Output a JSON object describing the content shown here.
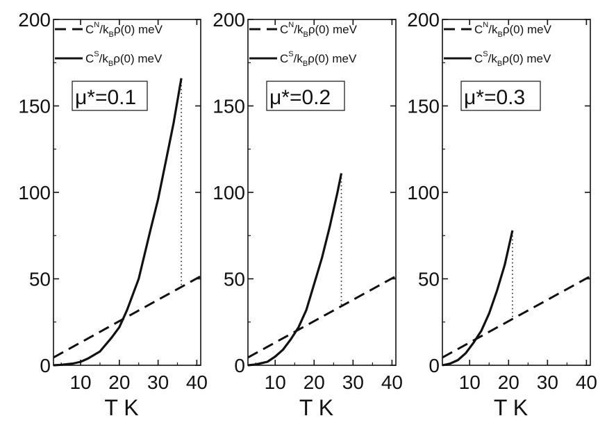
{
  "chart_data": [
    {
      "type": "line",
      "xlabel": "T K",
      "ylabel": "",
      "xlim": [
        3,
        41
      ],
      "ylim": [
        0,
        200
      ],
      "xticks": [
        10,
        20,
        30,
        40
      ],
      "yticks": [
        0,
        50,
        100,
        150,
        200
      ],
      "legend": [
        {
          "style": "dashed",
          "label_main": "C",
          "label_sup": "N",
          "label_mid": "/k",
          "label_sub": "B",
          "label_end": "ρ(0) meV"
        },
        {
          "style": "solid",
          "label_main": "C",
          "label_sup": "S",
          "label_mid": "/k",
          "label_sub": "B",
          "label_end": "ρ(0) meV"
        }
      ],
      "annotation": "μ*=0.1",
      "tc": 36,
      "series": [
        {
          "label": "",
          "style": "dashed",
          "x": [
            3,
            41
          ],
          "y": [
            4.5,
            51.5
          ]
        },
        {
          "label": "",
          "style": "solid",
          "x": [
            3,
            5,
            8,
            10,
            12,
            15,
            18,
            20,
            22,
            25,
            28,
            30,
            32,
            34,
            36
          ],
          "y": [
            0,
            0.3,
            1,
            2,
            4,
            8,
            16,
            22,
            32,
            50,
            78,
            96,
            118,
            140,
            166
          ]
        },
        {
          "label": "",
          "style": "dotted",
          "x": [
            36,
            36
          ],
          "y": [
            46.5,
            166
          ]
        }
      ]
    },
    {
      "type": "line",
      "xlabel": "T K",
      "ylabel": "",
      "xlim": [
        3,
        41
      ],
      "ylim": [
        0,
        200
      ],
      "xticks": [
        10,
        20,
        30,
        40
      ],
      "yticks": [
        0,
        50,
        100,
        150,
        200
      ],
      "legend": [
        {
          "style": "dashed",
          "label_main": "C",
          "label_sup": "N",
          "label_mid": "/k",
          "label_sub": "B",
          "label_end": "ρ(0) meV"
        },
        {
          "style": "solid",
          "label_main": "C",
          "label_sup": "S",
          "label_mid": "/k",
          "label_sub": "B",
          "label_end": "ρ(0) meV"
        }
      ],
      "annotation": "μ*=0.2",
      "tc": 27,
      "series": [
        {
          "label": "",
          "style": "dashed",
          "x": [
            3,
            41
          ],
          "y": [
            4.5,
            51.5
          ]
        },
        {
          "label": "",
          "style": "solid",
          "x": [
            3,
            5,
            8,
            10,
            12,
            14,
            16,
            18,
            20,
            22,
            24,
            26,
            27
          ],
          "y": [
            0,
            0.5,
            2,
            5,
            9,
            15,
            22,
            32,
            47,
            62,
            80,
            100,
            111
          ]
        },
        {
          "label": "",
          "style": "dotted",
          "x": [
            27,
            27
          ],
          "y": [
            35,
            111
          ]
        }
      ]
    },
    {
      "type": "line",
      "xlabel": "T K",
      "ylabel": "",
      "xlim": [
        3,
        41
      ],
      "ylim": [
        0,
        200
      ],
      "xticks": [
        10,
        20,
        30,
        40
      ],
      "yticks": [
        0,
        50,
        100,
        150,
        200
      ],
      "legend": [
        {
          "style": "dashed",
          "label_main": "C",
          "label_sup": "N",
          "label_mid": "/k",
          "label_sub": "B",
          "label_end": "ρ(0) meV"
        },
        {
          "style": "solid",
          "label_main": "C",
          "label_sup": "S",
          "label_mid": "/k",
          "label_sub": "B",
          "label_end": "ρ(0) meV"
        }
      ],
      "annotation": "μ*=0.3",
      "tc": 21,
      "series": [
        {
          "label": "",
          "style": "dashed",
          "x": [
            3,
            41
          ],
          "y": [
            4.5,
            51.5
          ]
        },
        {
          "label": "",
          "style": "solid",
          "x": [
            3,
            5,
            7,
            9,
            11,
            13,
            15,
            17,
            19,
            21
          ],
          "y": [
            0,
            1,
            3,
            7,
            13,
            20,
            30,
            43,
            58,
            78
          ]
        },
        {
          "label": "",
          "style": "dotted",
          "x": [
            21,
            21
          ],
          "y": [
            28,
            78
          ]
        }
      ]
    }
  ]
}
